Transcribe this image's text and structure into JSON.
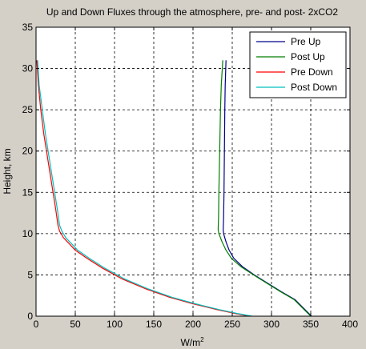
{
  "chart_data": {
    "type": "line",
    "title": "Up and Down Fluxes through the atmosphere, pre- and post- 2xCO2",
    "xlabel": "W/m",
    "xlabel_superscript": "2",
    "ylabel": "Height, km",
    "xlim": [
      0,
      400
    ],
    "ylim": [
      0,
      35
    ],
    "xticks": [
      0,
      50,
      100,
      150,
      200,
      250,
      300,
      350,
      400
    ],
    "yticks": [
      0,
      5,
      10,
      15,
      20,
      25,
      30,
      35
    ],
    "grid": true,
    "legend_position": "top-right",
    "colors": {
      "figure_background": "#d4d0c8",
      "axes_background": "#ffffff"
    },
    "series": [
      {
        "name": "Pre Up",
        "color": "#00008b",
        "points": [
          [
            351,
            0
          ],
          [
            330,
            2
          ],
          [
            312,
            3
          ],
          [
            295,
            4
          ],
          [
            278,
            5
          ],
          [
            263,
            6
          ],
          [
            252,
            7
          ],
          [
            246,
            8
          ],
          [
            242,
            9
          ],
          [
            239,
            10
          ],
          [
            238.5,
            10.5
          ],
          [
            239,
            12
          ],
          [
            239.5,
            15
          ],
          [
            240,
            20
          ],
          [
            240.5,
            25
          ],
          [
            241,
            28
          ],
          [
            242,
            31
          ]
        ]
      },
      {
        "name": "Post Up",
        "color": "#007f00",
        "points": [
          [
            350,
            0
          ],
          [
            329,
            2
          ],
          [
            311,
            3
          ],
          [
            294,
            4
          ],
          [
            277,
            5
          ],
          [
            261,
            6
          ],
          [
            249,
            7
          ],
          [
            242,
            8
          ],
          [
            237,
            9
          ],
          [
            233,
            10
          ],
          [
            232,
            10.5
          ],
          [
            232.5,
            12
          ],
          [
            233,
            15
          ],
          [
            234,
            20
          ],
          [
            235,
            25
          ],
          [
            236,
            28
          ],
          [
            238,
            31
          ]
        ]
      },
      {
        "name": "Pre Down",
        "color": "#ff0000",
        "points": [
          [
            272,
            0
          ],
          [
            255,
            0.3
          ],
          [
            230,
            0.8
          ],
          [
            200,
            1.5
          ],
          [
            170,
            2.3
          ],
          [
            140,
            3.3
          ],
          [
            110,
            4.5
          ],
          [
            85,
            5.8
          ],
          [
            65,
            7.0
          ],
          [
            50,
            8.0
          ],
          [
            42,
            8.8
          ],
          [
            35,
            9.5
          ],
          [
            30,
            10.3
          ],
          [
            28,
            11
          ],
          [
            25,
            13
          ],
          [
            20,
            16
          ],
          [
            15,
            19
          ],
          [
            10,
            22
          ],
          [
            6,
            25
          ],
          [
            3,
            28
          ],
          [
            1,
            31
          ]
        ]
      },
      {
        "name": "Post Down",
        "color": "#00bfbf",
        "points": [
          [
            275,
            0
          ],
          [
            258,
            0.3
          ],
          [
            233,
            0.8
          ],
          [
            203,
            1.5
          ],
          [
            173,
            2.3
          ],
          [
            143,
            3.3
          ],
          [
            113,
            4.5
          ],
          [
            88,
            5.8
          ],
          [
            68,
            7.0
          ],
          [
            53,
            8.0
          ],
          [
            45,
            8.8
          ],
          [
            38,
            9.5
          ],
          [
            33,
            10.3
          ],
          [
            30,
            11
          ],
          [
            27,
            13
          ],
          [
            22,
            16
          ],
          [
            17,
            19
          ],
          [
            12,
            22
          ],
          [
            8,
            25
          ],
          [
            4,
            28
          ],
          [
            2,
            31
          ]
        ]
      }
    ]
  }
}
